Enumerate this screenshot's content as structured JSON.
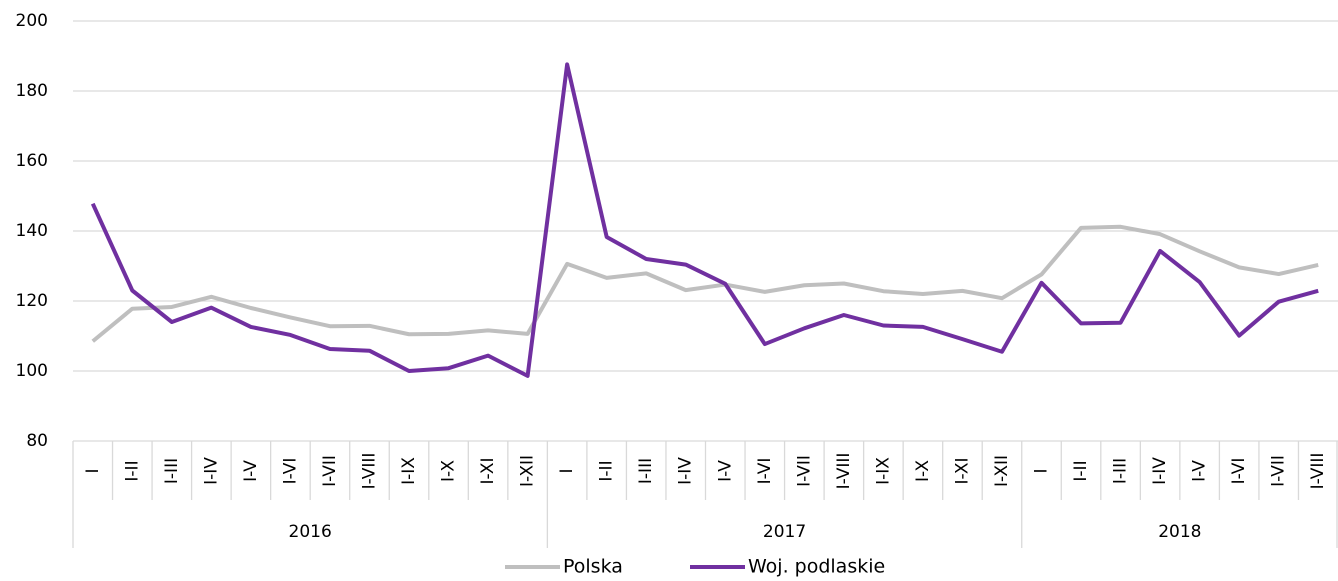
{
  "chart_data": {
    "type": "line",
    "categories": [
      "I",
      "I-II",
      "I-III",
      "I-IV",
      "I-V",
      "I-VI",
      "I-VII",
      "I-VIII",
      "I-IX",
      "I-X",
      "I-XI",
      "I-XII",
      "I",
      "I-II",
      "I-III",
      "I-IV",
      "I-V",
      "I-VI",
      "I-VII",
      "I-VIII",
      "I-IX",
      "I-X",
      "I-XI",
      "I-XII",
      "I",
      "I-II",
      "I-III",
      "I-IV",
      "I-V",
      "I-VI",
      "I-VII",
      "I-VIII"
    ],
    "x_groups": [
      "2016",
      "2017",
      "2018"
    ],
    "series": [
      {
        "name": "Polska",
        "color": "#bfbfbf",
        "values": [
          108.5,
          117.8,
          118.3,
          121.2,
          118,
          115.3,
          112.8,
          112.9,
          110.5,
          110.6,
          111.6,
          110.6,
          130.6,
          126.6,
          127.9,
          123.1,
          124.7,
          122.6,
          124.5,
          125,
          122.8,
          122,
          122.9,
          120.8,
          127.6,
          140.9,
          141.2,
          139.1,
          134.2,
          129.6,
          127.7,
          130.3
        ]
      },
      {
        "name": "Woj. podlaskie",
        "color": "#7030a0",
        "values": [
          147.8,
          123,
          114,
          118.1,
          112.6,
          110.3,
          106.3,
          105.8,
          100,
          100.8,
          104.4,
          98.6,
          187.6,
          138.3,
          132,
          130.4,
          124.9,
          107.7,
          112.2,
          116,
          113,
          112.6,
          109.1,
          105.5,
          125.2,
          113.6,
          113.8,
          134.3,
          125.4,
          110.1,
          119.8,
          122.9
        ]
      }
    ],
    "ylim": [
      80,
      200
    ],
    "yticks": [
      80,
      100,
      120,
      140,
      160,
      180,
      200
    ],
    "grid": true,
    "legend": "bottom"
  }
}
